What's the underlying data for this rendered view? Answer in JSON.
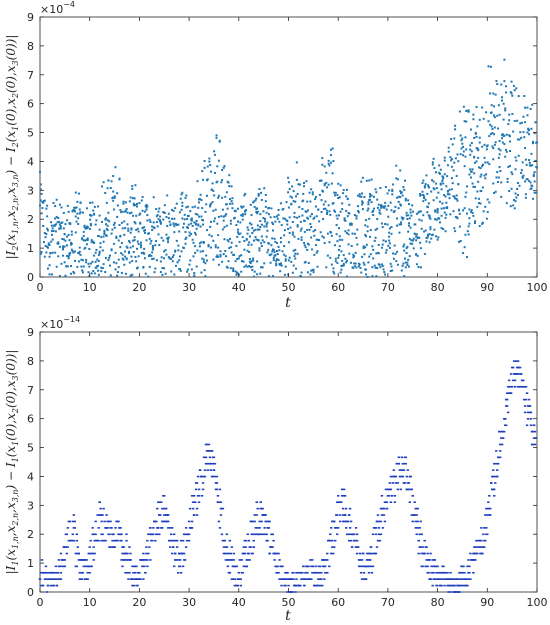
{
  "chart_data": [
    {
      "type": "scatter",
      "xlabel": "t",
      "ylabel": "|I_2(x_{1,n},x_{2,n},x_{3,n}) − I_2(x_1(0),x_2(0),x_3(0))|",
      "ylabel_parts": [
        "|I",
        "2",
        "(x",
        "1,n",
        ",x",
        "2,n",
        ",x",
        "3,n",
        ") − I",
        "2",
        "(x",
        "1",
        "(0),x",
        "2",
        "(0),x",
        "3",
        "(0))|"
      ],
      "scale_label": "×10",
      "scale_exp": "−4",
      "xlim": [
        0,
        100
      ],
      "ylim": [
        0,
        9
      ],
      "xticks": [
        "0",
        "10",
        "20",
        "30",
        "40",
        "50",
        "60",
        "70",
        "80",
        "90",
        "100"
      ],
      "yticks": [
        "0",
        "1",
        "2",
        "3",
        "4",
        "5",
        "6",
        "7",
        "8",
        "9"
      ],
      "color": "#1f77b4",
      "envelope_x": [
        0,
        1,
        2,
        3,
        4,
        5,
        6,
        7,
        8,
        9,
        10,
        11,
        12,
        13,
        14,
        15,
        16,
        17,
        18,
        19,
        20,
        21,
        22,
        23,
        24,
        25,
        26,
        27,
        28,
        29,
        30,
        31,
        32,
        33,
        34,
        35,
        36,
        37,
        38,
        39,
        40,
        41,
        42,
        43,
        44,
        45,
        46,
        47,
        48,
        49,
        50,
        51,
        52,
        53,
        54,
        55,
        56,
        57,
        58,
        59,
        60,
        61,
        62,
        63,
        64,
        65,
        66,
        67,
        68,
        69,
        70,
        71,
        72,
        73,
        74,
        75,
        76,
        77,
        78,
        79,
        80,
        81,
        82,
        83,
        84,
        85,
        86,
        87,
        88,
        89,
        90,
        91,
        92,
        93,
        94,
        95,
        96,
        97,
        98,
        99,
        100
      ],
      "envelope_upper": [
        4.0,
        3.2,
        2.6,
        2.9,
        3.0,
        2.9,
        2.7,
        2.9,
        3.3,
        2.7,
        2.6,
        3.0,
        3.3,
        3.5,
        4.0,
        4.4,
        3.8,
        3.0,
        3.1,
        3.4,
        3.0,
        2.9,
        2.9,
        3.3,
        3.5,
        3.3,
        2.9,
        2.8,
        3.0,
        3.3,
        3.1,
        3.0,
        3.8,
        4.4,
        5.0,
        5.2,
        5.7,
        4.7,
        4.0,
        3.6,
        3.3,
        3.0,
        2.8,
        3.1,
        3.6,
        3.3,
        3.0,
        2.7,
        2.8,
        3.1,
        3.6,
        4.1,
        4.3,
        3.8,
        3.4,
        3.7,
        4.2,
        4.5,
        4.9,
        4.8,
        4.2,
        3.6,
        3.2,
        3.0,
        3.3,
        3.6,
        4.0,
        3.8,
        3.5,
        3.1,
        3.5,
        3.9,
        4.1,
        3.8,
        3.3,
        2.8,
        2.5,
        3.4,
        4.3,
        4.6,
        4.2,
        4.5,
        5.0,
        5.2,
        5.9,
        6.2,
        6.5,
        6.3,
        6.9,
        7.2,
        7.4,
        7.6,
        8.2,
        7.8,
        7.5,
        7.2,
        7.0,
        6.8,
        6.5,
        6.4,
        6.0
      ],
      "envelope_lower": [
        0,
        0,
        0,
        0,
        0,
        0,
        0,
        0,
        0,
        0,
        0,
        0,
        0,
        0,
        0,
        0,
        0,
        0,
        0,
        0,
        0,
        0,
        0,
        0,
        0,
        0,
        0,
        0,
        0,
        0,
        0,
        0,
        0,
        0,
        0,
        0,
        0.2,
        0.5,
        0.2,
        0,
        0,
        0,
        0,
        0,
        0,
        0,
        0,
        0,
        0,
        0,
        0,
        0,
        0,
        0,
        0,
        0,
        0,
        0,
        0,
        0,
        0,
        0,
        0,
        0,
        0,
        0,
        0,
        0,
        0,
        0,
        0,
        0,
        0,
        0,
        0,
        0,
        0,
        0.5,
        0.9,
        1.0,
        1.0,
        1.2,
        1.4,
        1.3,
        1.2,
        0.8,
        0.6,
        1.0,
        1.5,
        1.8,
        2.0,
        2.2,
        2.5,
        2.7,
        2.4,
        2.2,
        2.5,
        2.7,
        2.3,
        2.4,
        2.3
      ]
    },
    {
      "type": "scatter",
      "xlabel": "t",
      "ylabel": "|I_1(x_{1,n},x_{2,n},x_{3,n}) − I_1(x_1(0),x_2(0),x_3(0))|",
      "ylabel_parts": [
        "|I",
        "1",
        "(x",
        "1,n",
        ",x",
        "2,n",
        ",x",
        "3,n",
        ") − I",
        "1",
        "(x",
        "1",
        "(0),x",
        "2",
        "(0),x",
        "3",
        "(0))|"
      ],
      "scale_label": "×10",
      "scale_exp": "−14",
      "xlim": [
        0,
        100
      ],
      "ylim": [
        0,
        9
      ],
      "xticks": [
        "0",
        "10",
        "20",
        "30",
        "40",
        "50",
        "60",
        "70",
        "80",
        "90",
        "100"
      ],
      "yticks": [
        "0",
        "1",
        "2",
        "3",
        "4",
        "5",
        "6",
        "7",
        "8",
        "9"
      ],
      "color": "#1f3fbf",
      "quantum": 0.222,
      "envelope_x": [
        0,
        1,
        2,
        3,
        4,
        5,
        6,
        7,
        8,
        9,
        10,
        11,
        12,
        13,
        14,
        15,
        16,
        17,
        18,
        19,
        20,
        21,
        22,
        23,
        24,
        25,
        26,
        27,
        28,
        29,
        30,
        31,
        32,
        33,
        34,
        35,
        36,
        37,
        38,
        39,
        40,
        41,
        42,
        43,
        44,
        45,
        46,
        47,
        48,
        49,
        50,
        51,
        52,
        53,
        54,
        55,
        56,
        57,
        58,
        59,
        60,
        61,
        62,
        63,
        64,
        65,
        66,
        67,
        68,
        69,
        70,
        71,
        72,
        73,
        74,
        75,
        76,
        77,
        78,
        79,
        80,
        81,
        82,
        83,
        84,
        85,
        86,
        87,
        88,
        89,
        90,
        91,
        92,
        93,
        94,
        95,
        96,
        97,
        98,
        99,
        100
      ],
      "envelope_center": [
        0.7,
        0.6,
        0.4,
        0.5,
        0.8,
        1.3,
        2.0,
        1.8,
        1.0,
        0.6,
        1.2,
        1.8,
        2.4,
        2.2,
        1.9,
        2.1,
        1.8,
        1.4,
        1.0,
        0.5,
        0.6,
        1.0,
        1.6,
        2.1,
        2.6,
        2.8,
        2.2,
        1.5,
        1.0,
        1.5,
        2.3,
        3.0,
        3.5,
        4.2,
        5.0,
        4.2,
        3.2,
        2.0,
        1.2,
        0.8,
        0.6,
        1.0,
        1.5,
        2.2,
        2.6,
        2.5,
        2.0,
        1.4,
        0.9,
        0.5,
        0.3,
        0.3,
        0.4,
        0.6,
        0.8,
        0.6,
        0.5,
        0.7,
        1.3,
        2.0,
        2.8,
        3.0,
        2.5,
        2.0,
        1.5,
        1.0,
        0.9,
        1.4,
        2.2,
        2.8,
        3.3,
        3.6,
        4.0,
        4.3,
        4.0,
        3.0,
        2.2,
        1.4,
        1.0,
        0.7,
        0.5,
        0.6,
        0.4,
        0.3,
        0.3,
        0.5,
        0.6,
        1.0,
        1.5,
        1.8,
        2.5,
        3.5,
        4.5,
        5.5,
        6.6,
        7.4,
        7.6,
        7.0,
        6.4,
        5.6,
        5.4
      ],
      "envelope_spread": [
        0.5,
        0.6,
        0.4,
        0.4,
        0.5,
        0.6,
        0.7,
        0.8,
        0.6,
        0.5,
        0.6,
        0.7,
        0.8,
        0.6,
        0.5,
        0.6,
        0.6,
        0.7,
        0.6,
        0.4,
        0.4,
        0.5,
        0.6,
        0.5,
        0.6,
        0.6,
        0.6,
        0.6,
        0.6,
        0.5,
        0.5,
        0.6,
        0.6,
        0.7,
        0.6,
        0.6,
        0.7,
        0.8,
        0.7,
        0.6,
        0.5,
        0.6,
        0.6,
        0.7,
        0.7,
        0.6,
        0.6,
        0.6,
        0.5,
        0.4,
        0.3,
        0.3,
        0.3,
        0.4,
        0.5,
        0.4,
        0.4,
        0.5,
        0.6,
        0.7,
        0.6,
        0.6,
        0.6,
        0.6,
        0.6,
        0.6,
        0.5,
        0.6,
        0.7,
        0.6,
        0.6,
        0.6,
        0.6,
        0.6,
        0.6,
        0.6,
        0.7,
        0.7,
        0.6,
        0.5,
        0.4,
        0.4,
        0.3,
        0.3,
        0.3,
        0.4,
        0.4,
        0.5,
        0.5,
        0.6,
        0.6,
        0.6,
        0.7,
        0.7,
        0.6,
        0.5,
        0.5,
        0.5,
        0.6,
        0.5,
        0.5
      ]
    }
  ]
}
